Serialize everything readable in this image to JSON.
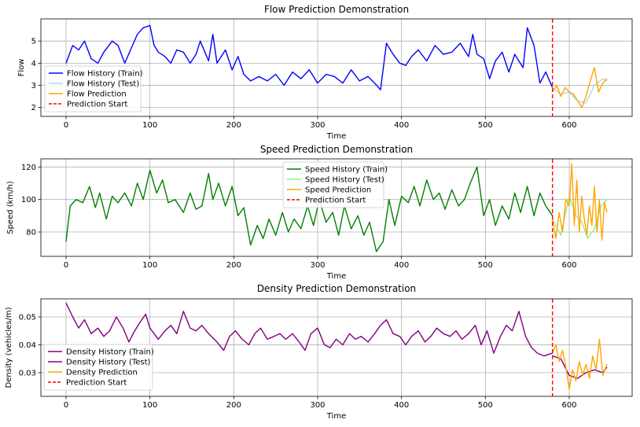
{
  "chart_data": [
    {
      "type": "line",
      "title": "Flow Prediction Demonstration",
      "xlabel": "Time",
      "ylabel": "Flow",
      "xlim": [
        -30,
        675
      ],
      "ylim": [
        1.6,
        6.0
      ],
      "xticks": [
        0,
        100,
        200,
        300,
        400,
        500,
        600
      ],
      "yticks": [
        2,
        3,
        4,
        5
      ],
      "grid": true,
      "legend_position": "center-left",
      "prediction_start": 580,
      "series": [
        {
          "name": "Flow History (Train)",
          "color": "#0000ff",
          "x": [
            0,
            8,
            15,
            22,
            30,
            38,
            45,
            55,
            62,
            70,
            78,
            85,
            92,
            100,
            105,
            110,
            118,
            125,
            132,
            140,
            148,
            155,
            160,
            170,
            175,
            180,
            190,
            198,
            205,
            212,
            220,
            230,
            240,
            250,
            260,
            270,
            280,
            290,
            300,
            310,
            320,
            330,
            340,
            350,
            360,
            368,
            375,
            382,
            390,
            398,
            405,
            412,
            420,
            430,
            440,
            450,
            460,
            470,
            480,
            485,
            490,
            498,
            505,
            512,
            520,
            528,
            535,
            545,
            550,
            558,
            565,
            572,
            580
          ],
          "values": [
            4.0,
            4.8,
            4.6,
            5.0,
            4.2,
            4.0,
            4.5,
            5.0,
            4.8,
            4.0,
            4.7,
            5.3,
            5.6,
            5.7,
            4.8,
            4.5,
            4.3,
            4.0,
            4.6,
            4.5,
            4.0,
            4.4,
            5.0,
            4.1,
            5.3,
            4.0,
            4.6,
            3.7,
            4.3,
            3.5,
            3.2,
            3.4,
            3.2,
            3.5,
            3.0,
            3.6,
            3.3,
            3.7,
            3.1,
            3.5,
            3.4,
            3.1,
            3.7,
            3.2,
            3.4,
            3.1,
            2.8,
            4.9,
            4.4,
            4.0,
            3.9,
            4.3,
            4.6,
            4.1,
            4.8,
            4.4,
            4.5,
            4.9,
            4.3,
            5.3,
            4.4,
            4.2,
            3.3,
            4.1,
            4.5,
            3.6,
            4.4,
            3.8,
            5.6,
            4.8,
            3.1,
            3.6,
            2.9
          ]
        },
        {
          "name": "Flow History (Test)",
          "color": "#add8e6",
          "x": [
            580,
            590,
            600,
            610,
            620,
            630,
            640,
            645
          ],
          "values": [
            2.9,
            2.6,
            2.7,
            2.3,
            2.2,
            3.0,
            3.3,
            3.2
          ]
        },
        {
          "name": "Flow Prediction",
          "color": "#ffa500",
          "x": [
            580,
            585,
            590,
            595,
            600,
            605,
            610,
            615,
            620,
            625,
            630,
            635,
            640,
            645
          ],
          "values": [
            2.7,
            3.0,
            2.5,
            2.9,
            2.7,
            2.6,
            2.3,
            2.0,
            2.5,
            3.2,
            3.8,
            2.7,
            3.1,
            3.3
          ]
        },
        {
          "name": "Prediction Start",
          "color": "#ff0000"
        }
      ]
    },
    {
      "type": "line",
      "title": "Speed Prediction Demonstration",
      "xlabel": "Time",
      "ylabel": "Speed (km/h)",
      "xlim": [
        -30,
        675
      ],
      "ylim": [
        65,
        125
      ],
      "xticks": [
        0,
        100,
        200,
        300,
        400,
        500,
        600
      ],
      "yticks": [
        80,
        100,
        120
      ],
      "grid": true,
      "legend_position": "top-center",
      "prediction_start": 580,
      "series": [
        {
          "name": "Speed History (Train)",
          "color": "#008000",
          "x": [
            0,
            5,
            12,
            20,
            28,
            35,
            40,
            48,
            55,
            62,
            70,
            78,
            85,
            92,
            100,
            108,
            115,
            122,
            130,
            140,
            148,
            155,
            162,
            170,
            175,
            182,
            190,
            198,
            205,
            212,
            220,
            228,
            235,
            242,
            250,
            258,
            265,
            272,
            280,
            288,
            295,
            302,
            310,
            318,
            325,
            332,
            340,
            348,
            355,
            362,
            370,
            378,
            385,
            392,
            400,
            408,
            415,
            422,
            430,
            438,
            445,
            452,
            460,
            468,
            475,
            482,
            490,
            498,
            505,
            512,
            520,
            528,
            535,
            542,
            550,
            558,
            565,
            572,
            580
          ],
          "values": [
            74,
            96,
            100,
            98,
            108,
            95,
            104,
            88,
            102,
            98,
            104,
            96,
            110,
            100,
            118,
            104,
            112,
            98,
            100,
            92,
            104,
            94,
            96,
            116,
            100,
            110,
            96,
            108,
            90,
            95,
            72,
            84,
            76,
            88,
            78,
            92,
            80,
            88,
            82,
            96,
            84,
            100,
            86,
            92,
            78,
            96,
            82,
            90,
            78,
            86,
            68,
            74,
            100,
            84,
            102,
            98,
            108,
            96,
            112,
            100,
            104,
            94,
            106,
            96,
            100,
            110,
            120,
            90,
            100,
            84,
            96,
            88,
            104,
            92,
            108,
            90,
            104,
            96,
            90
          ]
        },
        {
          "name": "Speed History (Test)",
          "color": "#90ee90",
          "x": [
            580,
            590,
            600,
            608,
            615,
            622,
            630,
            638,
            645
          ],
          "values": [
            88,
            78,
            102,
            90,
            86,
            76,
            82,
            96,
            100
          ]
        },
        {
          "name": "Speed Prediction",
          "color": "#ffa500",
          "x": [
            580,
            584,
            588,
            592,
            596,
            600,
            603,
            606,
            609,
            612,
            615,
            618,
            621,
            624,
            627,
            630,
            633,
            636,
            639,
            642,
            645
          ],
          "values": [
            88,
            76,
            92,
            80,
            100,
            96,
            122,
            84,
            112,
            80,
            102,
            88,
            78,
            96,
            84,
            108,
            80,
            100,
            75,
            98,
            92
          ]
        },
        {
          "name": "Prediction Start",
          "color": "#ff0000"
        }
      ]
    },
    {
      "type": "line",
      "title": "Density Prediction Demonstration",
      "xlabel": "Time",
      "ylabel": "Density (vehicles/m)",
      "xlim": [
        -30,
        675
      ],
      "ylim": [
        0.0215,
        0.0565
      ],
      "xticks": [
        0,
        100,
        200,
        300,
        400,
        500,
        600
      ],
      "yticks": [
        0.03,
        0.04,
        0.05
      ],
      "grid": true,
      "legend_position": "lower-left",
      "prediction_start": 580,
      "series": [
        {
          "name": "Density History (Train)",
          "color": "#800080",
          "x": [
            0,
            8,
            15,
            22,
            30,
            38,
            45,
            52,
            60,
            68,
            75,
            80,
            88,
            95,
            100,
            110,
            118,
            125,
            132,
            140,
            148,
            155,
            162,
            170,
            180,
            188,
            195,
            202,
            210,
            218,
            225,
            232,
            240,
            248,
            255,
            262,
            270,
            278,
            285,
            292,
            300,
            308,
            315,
            322,
            330,
            338,
            345,
            352,
            360,
            368,
            375,
            382,
            390,
            398,
            405,
            412,
            420,
            428,
            435,
            442,
            450,
            458,
            465,
            472,
            480,
            488,
            495,
            502,
            510,
            518,
            525,
            532,
            540,
            548,
            555,
            562,
            570,
            580
          ],
          "values": [
            0.055,
            0.05,
            0.046,
            0.049,
            0.044,
            0.046,
            0.043,
            0.045,
            0.05,
            0.046,
            0.041,
            0.044,
            0.048,
            0.051,
            0.046,
            0.042,
            0.045,
            0.047,
            0.044,
            0.052,
            0.046,
            0.045,
            0.047,
            0.044,
            0.041,
            0.038,
            0.043,
            0.045,
            0.042,
            0.04,
            0.044,
            0.046,
            0.042,
            0.043,
            0.044,
            0.042,
            0.044,
            0.041,
            0.038,
            0.044,
            0.046,
            0.04,
            0.039,
            0.042,
            0.04,
            0.044,
            0.042,
            0.043,
            0.041,
            0.044,
            0.047,
            0.049,
            0.044,
            0.043,
            0.04,
            0.043,
            0.045,
            0.041,
            0.043,
            0.046,
            0.044,
            0.043,
            0.045,
            0.042,
            0.044,
            0.047,
            0.04,
            0.045,
            0.037,
            0.043,
            0.047,
            0.045,
            0.052,
            0.043,
            0.039,
            0.037,
            0.036,
            0.037
          ]
        },
        {
          "name": "Density History (Test)",
          "color": "#800080",
          "x": [
            580,
            590,
            600,
            610,
            620,
            630,
            640,
            645
          ],
          "values": [
            0.036,
            0.035,
            0.029,
            0.028,
            0.03,
            0.031,
            0.03,
            0.032
          ]
        },
        {
          "name": "Density Prediction",
          "color": "#ffa500",
          "x": [
            580,
            584,
            588,
            592,
            596,
            600,
            604,
            608,
            612,
            616,
            620,
            624,
            628,
            632,
            636,
            640,
            645
          ],
          "values": [
            0.037,
            0.04,
            0.034,
            0.038,
            0.032,
            0.024,
            0.031,
            0.027,
            0.034,
            0.029,
            0.033,
            0.028,
            0.036,
            0.031,
            0.042,
            0.029,
            0.033
          ]
        },
        {
          "name": "Prediction Start",
          "color": "#ff0000"
        }
      ]
    }
  ]
}
